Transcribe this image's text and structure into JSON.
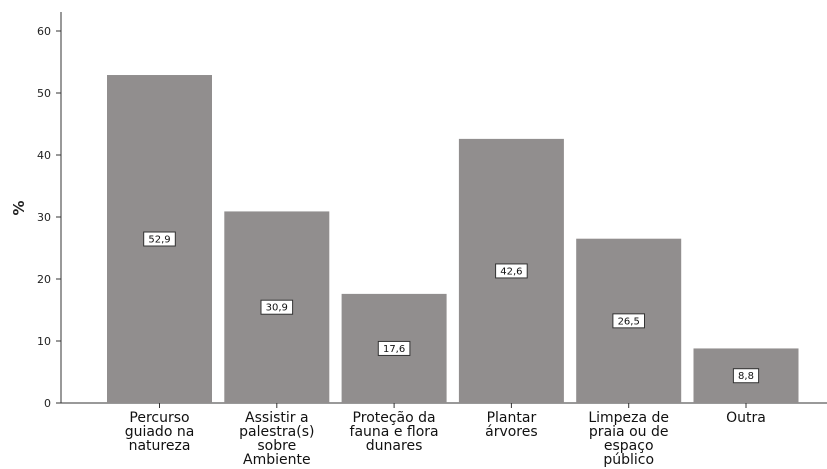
{
  "chart_data": {
    "type": "bar",
    "categories": [
      [
        "Percurso",
        "guiado na",
        "natureza"
      ],
      [
        "Assistir a",
        "palestra(s)",
        "sobre",
        "Ambiente"
      ],
      [
        "Proteção da",
        "fauna e flora",
        "dunares"
      ],
      [
        "Plantar",
        "árvores"
      ],
      [
        "Limpeza de",
        "praia ou de",
        "espaço",
        "público"
      ],
      [
        "Outra"
      ]
    ],
    "values": [
      52.9,
      30.9,
      17.6,
      42.6,
      26.5,
      8.8
    ],
    "value_labels": [
      "52,9",
      "30,9",
      "17,6",
      "42,6",
      "26,5",
      "8,8"
    ],
    "ylabel": "%",
    "xlabel": "",
    "ylim": [
      0,
      60
    ],
    "yticks": [
      0,
      10,
      20,
      30,
      40,
      50,
      60
    ],
    "bar_color": "#918e8e",
    "grid": false,
    "legend": "none"
  }
}
